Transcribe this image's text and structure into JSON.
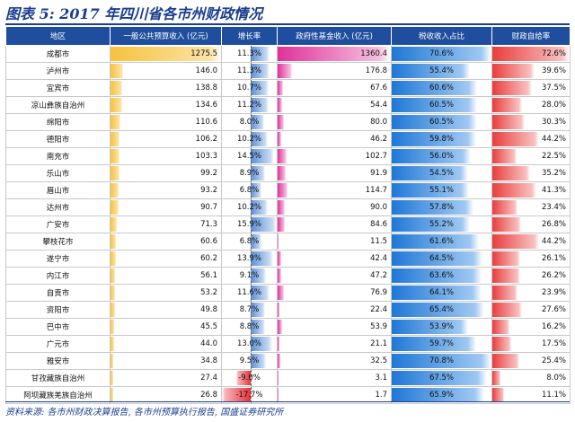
{
  "title": "图表 5:  2017 年四川省各市州财政情况",
  "source": "资料来源: 各市州财政决算报告, 各市州预算执行报告, 国盛证券研究所",
  "columns": [
    "地区",
    "一般公共预算收入 (亿元)",
    "增长率",
    "政府性基金收入 (亿元)",
    "税收收入占比",
    "财政自给率"
  ],
  "chart_data": {
    "type": "table",
    "columns": [
      "地区",
      "一般公共预算收入 (亿元)",
      "增长率",
      "政府性基金收入 (亿元)",
      "税收收入占比",
      "财政自给率"
    ],
    "rows": [
      {
        "region": "成都市",
        "gp": "1275.5",
        "gr": "11.3%",
        "fund": "1360.4",
        "tax": "70.6%",
        "self": "72.6%"
      },
      {
        "region": "泸州市",
        "gp": "146.0",
        "gr": "11.3%",
        "fund": "176.8",
        "tax": "55.4%",
        "self": "39.6%"
      },
      {
        "region": "宜宾市",
        "gp": "138.8",
        "gr": "10.7%",
        "fund": "67.6",
        "tax": "60.6%",
        "self": "37.5%"
      },
      {
        "region": "凉山彝族自治州",
        "gp": "134.6",
        "gr": "11.2%",
        "fund": "54.4",
        "tax": "60.5%",
        "self": "28.0%"
      },
      {
        "region": "绵阳市",
        "gp": "110.6",
        "gr": "8.0%",
        "fund": "80.0",
        "tax": "60.5%",
        "self": "30.3%"
      },
      {
        "region": "德阳市",
        "gp": "106.2",
        "gr": "10.2%",
        "fund": "46.2",
        "tax": "59.8%",
        "self": "44.2%"
      },
      {
        "region": "南充市",
        "gp": "103.3",
        "gr": "14.5%",
        "fund": "102.7",
        "tax": "56.0%",
        "self": "22.5%"
      },
      {
        "region": "乐山市",
        "gp": "99.2",
        "gr": "8.9%",
        "fund": "91.9",
        "tax": "54.5%",
        "self": "35.2%"
      },
      {
        "region": "眉山市",
        "gp": "93.2",
        "gr": "6.8%",
        "fund": "114.7",
        "tax": "55.1%",
        "self": "41.3%"
      },
      {
        "region": "达州市",
        "gp": "90.7",
        "gr": "10.2%",
        "fund": "90.0",
        "tax": "57.8%",
        "self": "23.4%"
      },
      {
        "region": "广安市",
        "gp": "71.3",
        "gr": "15.9%",
        "fund": "84.6",
        "tax": "55.2%",
        "self": "26.8%"
      },
      {
        "region": "攀枝花市",
        "gp": "60.6",
        "gr": "6.8%",
        "fund": "11.5",
        "tax": "61.6%",
        "self": "44.2%"
      },
      {
        "region": "遂宁市",
        "gp": "60.2",
        "gr": "13.9%",
        "fund": "42.4",
        "tax": "64.5%",
        "self": "26.1%"
      },
      {
        "region": "内江市",
        "gp": "56.1",
        "gr": "9.1%",
        "fund": "47.2",
        "tax": "63.6%",
        "self": "26.2%"
      },
      {
        "region": "自贡市",
        "gp": "53.2",
        "gr": "11.6%",
        "fund": "76.9",
        "tax": "64.1%",
        "self": "23.9%"
      },
      {
        "region": "资阳市",
        "gp": "49.8",
        "gr": "8.7%",
        "fund": "22.4",
        "tax": "65.4%",
        "self": "27.6%"
      },
      {
        "region": "巴中市",
        "gp": "45.5",
        "gr": "8.8%",
        "fund": "53.9",
        "tax": "53.9%",
        "self": "16.2%"
      },
      {
        "region": "广元市",
        "gp": "44.0",
        "gr": "13.0%",
        "fund": "21.1",
        "tax": "59.7%",
        "self": "17.5%"
      },
      {
        "region": "雅安市",
        "gp": "34.8",
        "gr": "9.5%",
        "fund": "32.5",
        "tax": "70.8%",
        "self": "25.4%"
      },
      {
        "region": "甘孜藏族自治州",
        "gp": "27.4",
        "gr": "-9.0%",
        "fund": "3.1",
        "tax": "67.5%",
        "self": "8.0%"
      },
      {
        "region": "阿坝藏族羌族自治州",
        "gp": "26.8",
        "gr": "-17.7%",
        "fund": "1.7",
        "tax": "65.9%",
        "self": "11.1%"
      }
    ]
  },
  "colors": {
    "header": "#1f4e9e",
    "title": "#1a3d8f"
  }
}
